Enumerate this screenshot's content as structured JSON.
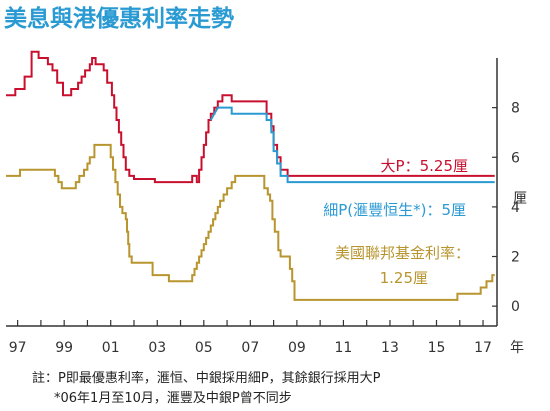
{
  "chart_data": {
    "type": "line",
    "title": "美息與港優惠利率走勢",
    "ylabel": "厘",
    "xlabel": "年",
    "x_domain": [
      1996.5,
      2017.6
    ],
    "ylim": [
      -0.8,
      10
    ],
    "y_ticks": [
      "0",
      "2",
      "4",
      "6",
      "8"
    ],
    "x_ticks": [
      "97",
      "99",
      "01",
      "03",
      "05",
      "07",
      "09",
      "11",
      "13",
      "15",
      "17"
    ],
    "grid": false,
    "colors": {
      "title": "#2a9ad3",
      "big_p": "#c8102e",
      "small_p": "#2a9ad3",
      "fed": "#b8952e",
      "axis": "#333333"
    },
    "series": [
      {
        "name": "大P：5.25厘",
        "points": [
          [
            1996.5,
            8.5
          ],
          [
            1996.9,
            8.5
          ],
          [
            1996.9,
            8.75
          ],
          [
            1997.3,
            8.75
          ],
          [
            1997.3,
            9.25
          ],
          [
            1997.6,
            9.25
          ],
          [
            1997.6,
            10.25
          ],
          [
            1997.9,
            10.25
          ],
          [
            1997.9,
            10.0
          ],
          [
            1998.3,
            10.0
          ],
          [
            1998.3,
            9.75
          ],
          [
            1998.5,
            9.75
          ],
          [
            1998.5,
            9.5
          ],
          [
            1998.7,
            9.5
          ],
          [
            1998.7,
            9.0
          ],
          [
            1998.95,
            9.0
          ],
          [
            1998.95,
            8.5
          ],
          [
            1999.3,
            8.5
          ],
          [
            1999.3,
            8.75
          ],
          [
            1999.6,
            8.75
          ],
          [
            1999.6,
            9.0
          ],
          [
            1999.75,
            9.0
          ],
          [
            1999.75,
            9.25
          ],
          [
            1999.9,
            9.25
          ],
          [
            1999.9,
            9.5
          ],
          [
            2000.1,
            9.5
          ],
          [
            2000.1,
            9.75
          ],
          [
            2000.2,
            9.75
          ],
          [
            2000.2,
            10.0
          ],
          [
            2000.35,
            10.0
          ],
          [
            2000.35,
            9.75
          ],
          [
            2000.7,
            9.75
          ],
          [
            2000.7,
            9.5
          ],
          [
            2000.85,
            9.5
          ],
          [
            2000.85,
            9.0
          ],
          [
            2001.05,
            9.0
          ],
          [
            2001.05,
            8.5
          ],
          [
            2001.15,
            8.5
          ],
          [
            2001.15,
            8.0
          ],
          [
            2001.25,
            8.0
          ],
          [
            2001.25,
            7.5
          ],
          [
            2001.35,
            7.5
          ],
          [
            2001.35,
            7.0
          ],
          [
            2001.45,
            7.0
          ],
          [
            2001.45,
            6.5
          ],
          [
            2001.55,
            6.5
          ],
          [
            2001.55,
            6.0
          ],
          [
            2001.65,
            6.0
          ],
          [
            2001.65,
            5.5
          ],
          [
            2001.8,
            5.5
          ],
          [
            2001.8,
            5.25
          ],
          [
            2002.0,
            5.25
          ],
          [
            2002.0,
            5.125
          ],
          [
            2002.9,
            5.125
          ],
          [
            2002.9,
            5.0
          ],
          [
            2004.5,
            5.0
          ],
          [
            2004.5,
            5.25
          ],
          [
            2004.7,
            5.25
          ],
          [
            2004.7,
            5.0
          ],
          [
            2004.8,
            5.0
          ],
          [
            2004.8,
            5.5
          ],
          [
            2004.9,
            5.5
          ],
          [
            2004.9,
            6.0
          ],
          [
            2005.0,
            6.0
          ],
          [
            2005.0,
            6.5
          ],
          [
            2005.1,
            6.5
          ],
          [
            2005.1,
            7.0
          ],
          [
            2005.2,
            7.0
          ],
          [
            2005.2,
            7.5
          ],
          [
            2005.3,
            7.5
          ],
          [
            2005.3,
            7.75
          ],
          [
            2005.45,
            7.75
          ],
          [
            2005.45,
            8.0
          ],
          [
            2005.6,
            8.0
          ],
          [
            2005.6,
            8.25
          ],
          [
            2005.8,
            8.25
          ],
          [
            2005.8,
            8.5
          ],
          [
            2006.2,
            8.5
          ],
          [
            2006.2,
            8.25
          ],
          [
            2007.7,
            8.25
          ],
          [
            2007.7,
            7.75
          ],
          [
            2007.9,
            7.75
          ],
          [
            2007.9,
            7.25
          ],
          [
            2008.0,
            7.25
          ],
          [
            2008.0,
            6.5
          ],
          [
            2008.15,
            6.5
          ],
          [
            2008.15,
            6.0
          ],
          [
            2008.3,
            6.0
          ],
          [
            2008.3,
            5.5
          ],
          [
            2008.6,
            5.5
          ],
          [
            2008.6,
            5.25
          ],
          [
            2017.5,
            5.25
          ]
        ]
      },
      {
        "name": "細P(滙豐恒生*)：5厘",
        "points": [
          [
            2005.3,
            7.5
          ],
          [
            2005.45,
            7.75
          ],
          [
            2005.6,
            8.0
          ],
          [
            2005.8,
            8.0
          ],
          [
            2005.8,
            8.0
          ],
          [
            2006.2,
            8.0
          ],
          [
            2006.2,
            7.75
          ],
          [
            2007.7,
            7.75
          ],
          [
            2007.7,
            7.5
          ],
          [
            2007.9,
            7.5
          ],
          [
            2007.9,
            7.0
          ],
          [
            2008.0,
            7.0
          ],
          [
            2008.0,
            6.25
          ],
          [
            2008.15,
            6.25
          ],
          [
            2008.15,
            5.75
          ],
          [
            2008.3,
            5.75
          ],
          [
            2008.3,
            5.25
          ],
          [
            2008.6,
            5.25
          ],
          [
            2008.6,
            5.0
          ],
          [
            2017.5,
            5.0
          ]
        ]
      },
      {
        "name": "美國聯邦基金利率：",
        "name2": "1.25厘",
        "points": [
          [
            1996.5,
            5.25
          ],
          [
            1997.1,
            5.25
          ],
          [
            1997.1,
            5.5
          ],
          [
            1998.6,
            5.5
          ],
          [
            1998.6,
            5.25
          ],
          [
            1998.75,
            5.25
          ],
          [
            1998.75,
            5.0
          ],
          [
            1998.9,
            5.0
          ],
          [
            1998.9,
            4.75
          ],
          [
            1999.5,
            4.75
          ],
          [
            1999.5,
            5.0
          ],
          [
            1999.65,
            5.0
          ],
          [
            1999.65,
            5.25
          ],
          [
            1999.85,
            5.25
          ],
          [
            1999.85,
            5.5
          ],
          [
            2000.0,
            5.5
          ],
          [
            2000.0,
            5.75
          ],
          [
            2000.1,
            5.75
          ],
          [
            2000.1,
            6.0
          ],
          [
            2000.3,
            6.0
          ],
          [
            2000.3,
            6.5
          ],
          [
            2000.45,
            6.5
          ],
          [
            2000.45,
            6.5
          ],
          [
            2001.0,
            6.5
          ],
          [
            2001.0,
            6.0
          ],
          [
            2001.1,
            6.0
          ],
          [
            2001.1,
            5.5
          ],
          [
            2001.2,
            5.5
          ],
          [
            2001.2,
            5.0
          ],
          [
            2001.3,
            5.0
          ],
          [
            2001.3,
            4.5
          ],
          [
            2001.4,
            4.5
          ],
          [
            2001.4,
            4.0
          ],
          [
            2001.5,
            4.0
          ],
          [
            2001.5,
            3.75
          ],
          [
            2001.65,
            3.75
          ],
          [
            2001.65,
            3.5
          ],
          [
            2001.7,
            3.5
          ],
          [
            2001.7,
            3.0
          ],
          [
            2001.75,
            3.0
          ],
          [
            2001.75,
            2.5
          ],
          [
            2001.8,
            2.5
          ],
          [
            2001.8,
            2.0
          ],
          [
            2001.9,
            2.0
          ],
          [
            2001.9,
            1.75
          ],
          [
            2002.8,
            1.75
          ],
          [
            2002.8,
            1.25
          ],
          [
            2003.5,
            1.25
          ],
          [
            2003.5,
            1.0
          ],
          [
            2004.5,
            1.0
          ],
          [
            2004.5,
            1.25
          ],
          [
            2004.6,
            1.25
          ],
          [
            2004.6,
            1.5
          ],
          [
            2004.7,
            1.5
          ],
          [
            2004.7,
            1.75
          ],
          [
            2004.8,
            1.75
          ],
          [
            2004.8,
            2.0
          ],
          [
            2004.9,
            2.0
          ],
          [
            2004.9,
            2.25
          ],
          [
            2005.0,
            2.25
          ],
          [
            2005.0,
            2.5
          ],
          [
            2005.1,
            2.5
          ],
          [
            2005.1,
            2.75
          ],
          [
            2005.2,
            2.75
          ],
          [
            2005.2,
            3.0
          ],
          [
            2005.3,
            3.0
          ],
          [
            2005.3,
            3.25
          ],
          [
            2005.4,
            3.25
          ],
          [
            2005.4,
            3.5
          ],
          [
            2005.5,
            3.5
          ],
          [
            2005.5,
            3.75
          ],
          [
            2005.6,
            3.75
          ],
          [
            2005.6,
            4.0
          ],
          [
            2005.7,
            4.0
          ],
          [
            2005.7,
            4.25
          ],
          [
            2005.85,
            4.25
          ],
          [
            2005.85,
            4.5
          ],
          [
            2006.0,
            4.5
          ],
          [
            2006.0,
            4.75
          ],
          [
            2006.2,
            4.75
          ],
          [
            2006.2,
            5.0
          ],
          [
            2006.35,
            5.0
          ],
          [
            2006.35,
            5.25
          ],
          [
            2007.6,
            5.25
          ],
          [
            2007.6,
            4.75
          ],
          [
            2007.75,
            4.75
          ],
          [
            2007.75,
            4.5
          ],
          [
            2007.85,
            4.5
          ],
          [
            2007.85,
            4.25
          ],
          [
            2007.95,
            4.25
          ],
          [
            2007.95,
            3.5
          ],
          [
            2008.05,
            3.5
          ],
          [
            2008.05,
            3.0
          ],
          [
            2008.2,
            3.0
          ],
          [
            2008.2,
            2.25
          ],
          [
            2008.3,
            2.25
          ],
          [
            2008.3,
            2.0
          ],
          [
            2008.7,
            2.0
          ],
          [
            2008.7,
            1.5
          ],
          [
            2008.8,
            1.5
          ],
          [
            2008.8,
            1.0
          ],
          [
            2008.9,
            1.0
          ],
          [
            2008.9,
            0.25
          ],
          [
            2015.9,
            0.25
          ],
          [
            2015.9,
            0.5
          ],
          [
            2016.9,
            0.5
          ],
          [
            2016.9,
            0.75
          ],
          [
            2017.15,
            0.75
          ],
          [
            2017.15,
            1.0
          ],
          [
            2017.4,
            1.0
          ],
          [
            2017.4,
            1.25
          ],
          [
            2017.5,
            1.25
          ]
        ]
      }
    ]
  },
  "footnote": {
    "line1": "註：P即最優惠利率，滙恒、中銀採用細P，其餘銀行採用大P",
    "line2": "*06年1月至10月，滙豐及中銀P曾不同步"
  }
}
